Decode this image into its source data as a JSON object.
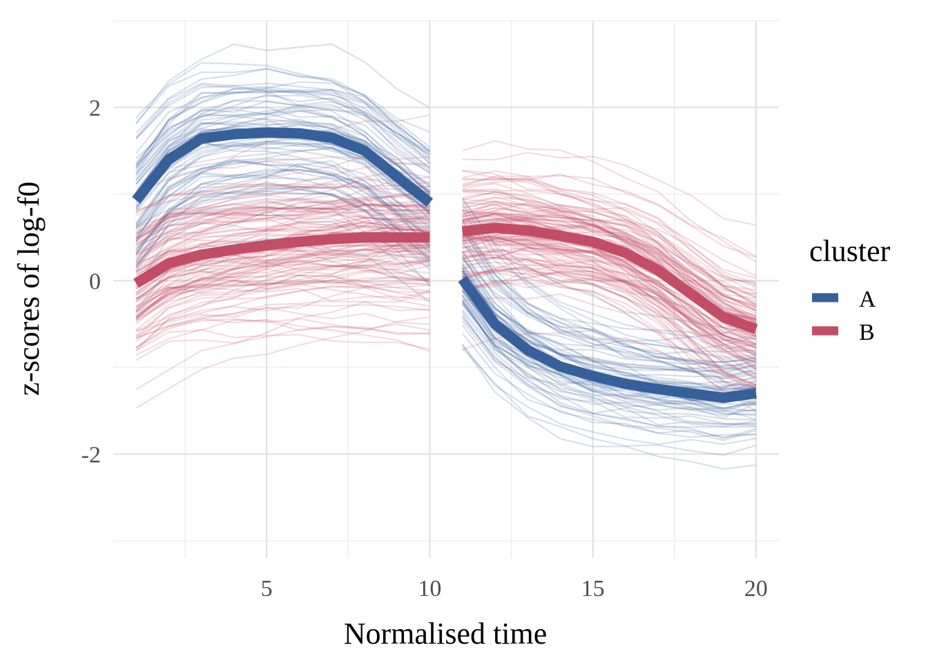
{
  "chart_data": {
    "type": "line",
    "title": "",
    "xlabel": "Normalised time",
    "ylabel": "z-scores of log-f0",
    "xlim": [
      0.3,
      20.7
    ],
    "ylim": [
      -3.2,
      3.0
    ],
    "x_ticks": [
      5,
      10,
      15,
      20
    ],
    "y_ticks": [
      -2,
      0,
      2
    ],
    "x_tick_labels": [
      "5",
      "10",
      "15",
      "20"
    ],
    "y_tick_labels": [
      "-2",
      "0",
      "2"
    ],
    "x_minor_ticks": [
      2.5,
      7.5,
      12.5,
      17.5
    ],
    "y_minor_ticks": [
      -3,
      -1,
      1,
      3
    ],
    "grid": true,
    "legend": {
      "title": "cluster",
      "placement": "right",
      "entries": [
        {
          "label": "A",
          "color": "#35609a"
        },
        {
          "label": "B",
          "color": "#c24d66"
        }
      ]
    },
    "series": [
      {
        "name": "A",
        "color": "#35609a",
        "segments": [
          {
            "x": [
              1,
              2,
              3,
              4,
              5,
              6,
              7,
              8,
              9,
              10
            ],
            "y": [
              0.93,
              1.4,
              1.64,
              1.69,
              1.71,
              1.7,
              1.65,
              1.5,
              1.2,
              0.9
            ]
          },
          {
            "x": [
              11,
              12,
              13,
              14,
              15,
              16,
              17,
              18,
              19,
              20
            ],
            "y": [
              0.02,
              -0.5,
              -0.8,
              -0.99,
              -1.1,
              -1.19,
              -1.25,
              -1.3,
              -1.35,
              -1.3
            ]
          }
        ]
      },
      {
        "name": "B",
        "color": "#c24d66",
        "segments": [
          {
            "x": [
              1,
              2,
              3,
              4,
              5,
              6,
              7,
              8,
              9,
              10
            ],
            "y": [
              -0.03,
              0.2,
              0.3,
              0.36,
              0.41,
              0.45,
              0.48,
              0.5,
              0.5,
              0.5
            ]
          },
          {
            "x": [
              11,
              12,
              13,
              14,
              15,
              16,
              17,
              18,
              19,
              20
            ],
            "y": [
              0.57,
              0.61,
              0.58,
              0.52,
              0.45,
              0.32,
              0.12,
              -0.15,
              -0.42,
              -0.56
            ]
          }
        ]
      }
    ]
  }
}
